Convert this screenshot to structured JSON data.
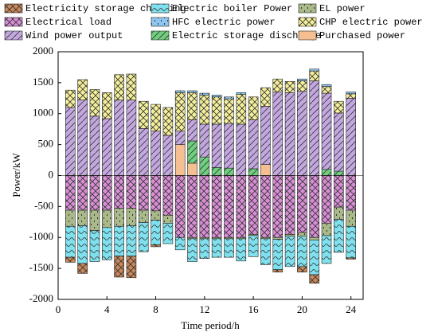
{
  "chart_data": {
    "type": "bar",
    "stacked": true,
    "x_label": "Time period/h",
    "y_label": "Power/kW",
    "categories": [
      1,
      2,
      3,
      4,
      5,
      6,
      7,
      8,
      9,
      10,
      11,
      12,
      13,
      14,
      15,
      16,
      17,
      18,
      19,
      20,
      21,
      22,
      23,
      24
    ],
    "xlim": [
      0,
      25
    ],
    "xticks": [
      0,
      4,
      8,
      12,
      16,
      20,
      24
    ],
    "ylim": [
      -2000,
      2000
    ],
    "yticks": [
      -2000,
      -1500,
      -1000,
      -500,
      0,
      500,
      1000,
      1500,
      2000
    ],
    "series": [
      {
        "name": "Electricity storage charging",
        "color": "#c9875a",
        "values": [
          -80,
          -160,
          0,
          0,
          -340,
          -350,
          0,
          -30,
          0,
          0,
          0,
          0,
          0,
          0,
          0,
          0,
          0,
          -40,
          0,
          -90,
          -140,
          0,
          0,
          -20
        ]
      },
      {
        "name": "Electric boiler Power",
        "color": "#7fe0ee",
        "values": [
          -500,
          -610,
          -500,
          -520,
          -480,
          -490,
          -470,
          -400,
          -330,
          -200,
          -370,
          -320,
          -300,
          -300,
          -360,
          -340,
          -420,
          -490,
          -490,
          -490,
          -560,
          -450,
          -530,
          -510
        ]
      },
      {
        "name": "EL power",
        "color": "#a9b98a",
        "values": [
          -260,
          -250,
          -330,
          -280,
          -290,
          -280,
          -200,
          -150,
          -130,
          0,
          -20,
          -20,
          -20,
          -20,
          -20,
          -20,
          -20,
          -30,
          -30,
          -60,
          -40,
          -200,
          -200,
          -260
        ]
      },
      {
        "name": "Electrical load",
        "color": "#d98fd6",
        "values": [
          -560,
          -560,
          -560,
          -560,
          -530,
          -530,
          -560,
          -570,
          -640,
          -1000,
          -1000,
          -1000,
          -1000,
          -1000,
          -1000,
          -950,
          -1000,
          -1000,
          -950,
          -920,
          -1000,
          -770,
          -510,
          -560
        ]
      },
      {
        "name": "HFC electric power",
        "color": "#8ec6f0",
        "values": [
          0,
          0,
          0,
          0,
          0,
          0,
          0,
          0,
          0,
          30,
          30,
          30,
          30,
          30,
          30,
          0,
          0,
          0,
          0,
          30,
          30,
          30,
          0,
          30
        ]
      },
      {
        "name": "CHP electric power",
        "color": "#f4ef9a",
        "values": [
          280,
          330,
          430,
          420,
          410,
          420,
          440,
          430,
          450,
          620,
          440,
          470,
          440,
          400,
          480,
          370,
          300,
          210,
          180,
          170,
          160,
          110,
          190,
          70
        ]
      },
      {
        "name": "Wind power output",
        "color": "#c3a8e0",
        "values": [
          1100,
          1220,
          960,
          920,
          1220,
          1220,
          760,
          720,
          650,
          220,
          340,
          530,
          700,
          720,
          830,
          790,
          940,
          1350,
          1340,
          1360,
          1530,
          1230,
          940,
          1250
        ]
      },
      {
        "name": "Electric storage discharge",
        "color": "#6fcf7f",
        "values": [
          0,
          0,
          0,
          0,
          0,
          0,
          0,
          0,
          0,
          0,
          360,
          300,
          130,
          120,
          0,
          110,
          0,
          0,
          0,
          0,
          0,
          100,
          70,
          0
        ]
      },
      {
        "name": "Purchased power",
        "color": "#f6bf92",
        "values": [
          0,
          0,
          0,
          0,
          0,
          0,
          0,
          0,
          0,
          500,
          200,
          0,
          0,
          0,
          0,
          0,
          180,
          0,
          0,
          0,
          0,
          0,
          0,
          0
        ]
      }
    ]
  }
}
